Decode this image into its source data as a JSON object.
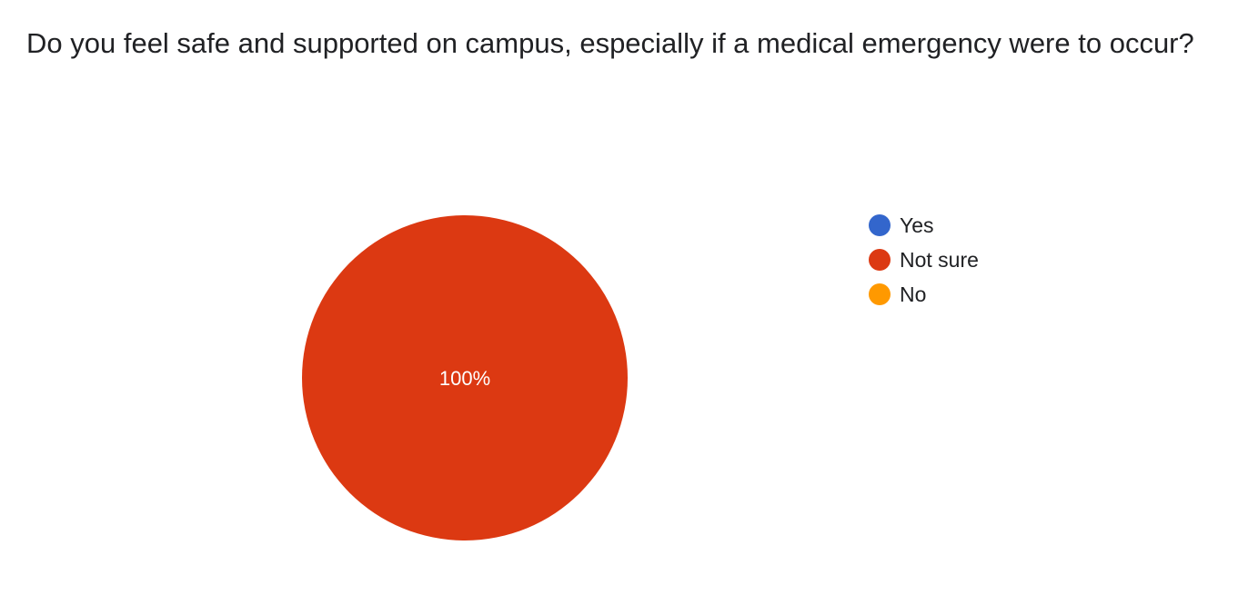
{
  "question": {
    "title": "Do you feel safe and supported on campus, especially if a medical emergency were to occur?"
  },
  "chart_data": {
    "type": "pie",
    "categories": [
      "Yes",
      "Not sure",
      "No"
    ],
    "values": [
      0,
      100,
      0
    ],
    "unit": "%",
    "colors": [
      "#3366cc",
      "#dc3912",
      "#ff9900"
    ],
    "data_labels": [
      "",
      "100%",
      ""
    ],
    "legend_position": "right"
  }
}
